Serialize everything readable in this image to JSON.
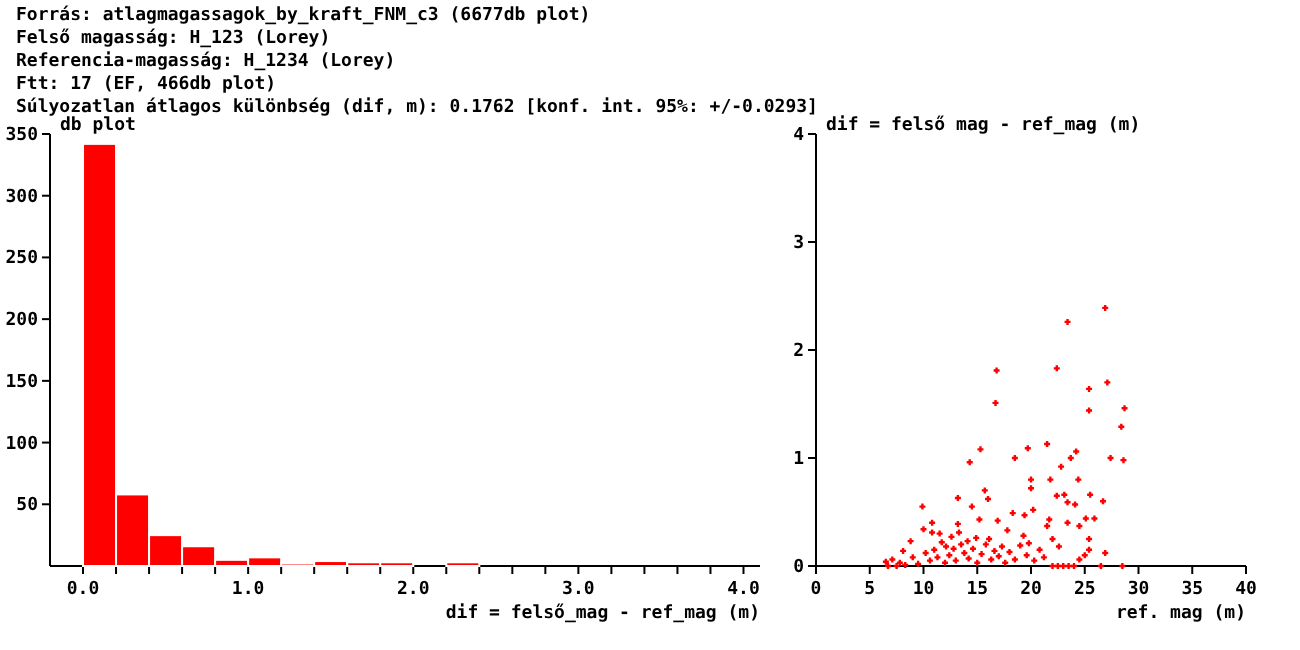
{
  "chart_data": [
    {
      "type": "histogram",
      "annotations": [
        "Forrás: atlagmagassagok_by_kraft_FNM_c3 (6677db plot)",
        "Felső magasság: H_123 (Lorey)",
        "Referencia-magasság: H_1234 (Lorey)",
        "Ftt: 17 (EF, 466db plot)",
        "Súlyozatlan átlagos különbség (dif, m): 0.1762 [konf. int. 95%: +/-0.0293]"
      ],
      "ylabel": "db plot",
      "xlabel": "dif = felső_mag - ref_mag (m)",
      "bins": [
        0,
        0.2,
        0.4,
        0.6,
        0.8,
        1.0,
        1.2,
        1.4,
        1.6,
        1.8,
        2.0,
        2.2,
        2.4
      ],
      "values": [
        342,
        58,
        25,
        16,
        5,
        7,
        2,
        4,
        3,
        3,
        0,
        3
      ],
      "color": "#ff0000",
      "xlim": [
        -0.2,
        4.1
      ],
      "xticks": [
        {
          "value": 0,
          "label": "0.0"
        },
        {
          "value": 0.2,
          "label": null
        },
        {
          "value": 0.4,
          "label": null
        },
        {
          "value": 0.6,
          "label": null
        },
        {
          "value": 0.8,
          "label": null
        },
        {
          "value": 1,
          "label": "1.0"
        },
        {
          "value": 1.2,
          "label": null
        },
        {
          "value": 1.4,
          "label": null
        },
        {
          "value": 1.6,
          "label": null
        },
        {
          "value": 1.8,
          "label": null
        },
        {
          "value": 2,
          "label": "2.0"
        },
        {
          "value": 2.2,
          "label": null
        },
        {
          "value": 2.4,
          "label": null
        },
        {
          "value": 2.6,
          "label": null
        },
        {
          "value": 2.8,
          "label": null
        },
        {
          "value": 3,
          "label": "3.0"
        },
        {
          "value": 3.2,
          "label": null
        },
        {
          "value": 3.4,
          "label": null
        },
        {
          "value": 3.6,
          "label": null
        },
        {
          "value": 3.8,
          "label": null
        },
        {
          "value": 4,
          "label": "4.0"
        }
      ],
      "ylim": [
        0,
        350
      ],
      "yticks": [
        50,
        100,
        150,
        200,
        250,
        300,
        350
      ],
      "grid": false
    },
    {
      "type": "scatter",
      "ylabel": "dif = felső mag - ref_mag (m)",
      "xlabel": "ref. mag (m)",
      "color": "#ff0000",
      "marker": "cross",
      "x": [
        26.9,
        23.4,
        22.4,
        16.8,
        27.1,
        25.4,
        25.4,
        28.7,
        16.7,
        28.4,
        21.5,
        19.7,
        15.3,
        24.2,
        27.4,
        28.6,
        18.5,
        23.7,
        14.3,
        22.8,
        9.9,
        14.5,
        15.7,
        16.0,
        13.2,
        20.0,
        20.0,
        21.8,
        24.4,
        23.1,
        25.5,
        26.7,
        23.4,
        22.4,
        24.1,
        20.2,
        18.3,
        19.4,
        21.7,
        25.1,
        25.9,
        10.8,
        13.2,
        15.2,
        16.9,
        10.0,
        10.8,
        8.8,
        24.5,
        23.4,
        22.0,
        25.4,
        26.9,
        25.4,
        12.1,
        13.3,
        14.1,
        16.1,
        17.3,
        19.3,
        21.5,
        22.6,
        8.1,
        7.1,
        6.5,
        7.8,
        9.0,
        9.5,
        10.2,
        10.6,
        11.0,
        11.3,
        11.7,
        12.0,
        12.4,
        12.8,
        13.0,
        13.5,
        13.8,
        14.2,
        14.6,
        15.0,
        15.4,
        15.8,
        16.3,
        16.6,
        17.0,
        17.6,
        18.0,
        18.5,
        19.0,
        19.6,
        20.3,
        20.8,
        21.2,
        22.0,
        22.5,
        23.0,
        23.5,
        24.0,
        24.5,
        25.0,
        26.5,
        28.5,
        6.7,
        7.5,
        8.3,
        11.5,
        12.6,
        14.9,
        17.8,
        19.8
      ],
      "values": [
        2.39,
        2.26,
        1.83,
        1.81,
        1.7,
        1.64,
        1.44,
        1.46,
        1.51,
        1.29,
        1.13,
        1.09,
        1.08,
        1.06,
        1.0,
        0.98,
        1.0,
        1.0,
        0.96,
        0.92,
        0.55,
        0.55,
        0.7,
        0.62,
        0.63,
        0.8,
        0.72,
        0.8,
        0.8,
        0.66,
        0.66,
        0.6,
        0.59,
        0.65,
        0.57,
        0.52,
        0.49,
        0.47,
        0.43,
        0.44,
        0.44,
        0.4,
        0.39,
        0.43,
        0.42,
        0.34,
        0.31,
        0.23,
        0.37,
        0.4,
        0.25,
        0.25,
        0.12,
        0.15,
        0.18,
        0.31,
        0.23,
        0.25,
        0.18,
        0.28,
        0.37,
        0.18,
        0.14,
        0.06,
        0.04,
        0.03,
        0.08,
        0.02,
        0.12,
        0.05,
        0.15,
        0.08,
        0.22,
        0.03,
        0.1,
        0.16,
        0.05,
        0.2,
        0.12,
        0.07,
        0.16,
        0.03,
        0.11,
        0.2,
        0.06,
        0.14,
        0.09,
        0.03,
        0.13,
        0.06,
        0.19,
        0.1,
        0.05,
        0.15,
        0.08,
        0,
        0,
        0,
        0,
        0,
        0.06,
        0.1,
        0,
        0,
        0,
        0,
        0.01,
        0.3,
        0.27,
        0.26,
        0.33,
        0.21
      ],
      "xlim": [
        0,
        40
      ],
      "xticks": [
        0,
        5,
        10,
        15,
        20,
        25,
        30,
        35,
        40
      ],
      "ylim": [
        0,
        4
      ],
      "yticks": [
        0,
        1,
        2,
        3,
        4
      ],
      "grid": false
    }
  ]
}
